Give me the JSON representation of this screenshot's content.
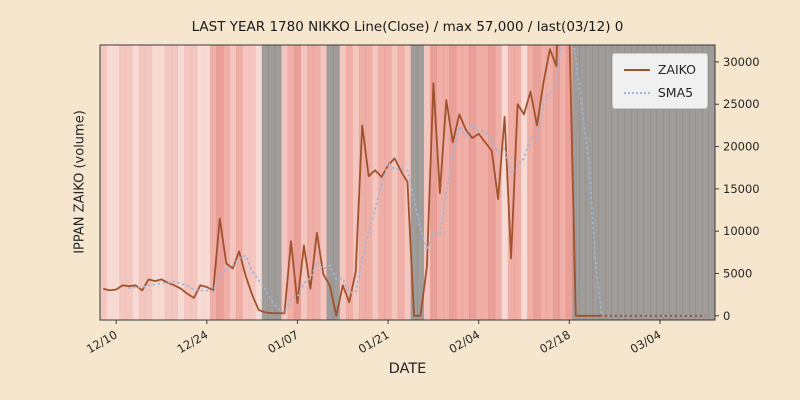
{
  "figure": {
    "background": "#F5E6CD"
  },
  "chart_data": {
    "type": "line",
    "title": "LAST YEAR 1780 NIKKO Line(Close) / max 57,000 / last(03/12) 0",
    "xlabel": "DATE",
    "ylabel": "IPPAN ZAIKO (volume)",
    "ylim": [
      -500,
      32000
    ],
    "yticks": [
      0,
      5000,
      10000,
      15000,
      20000,
      25000,
      30000
    ],
    "xtick_labels": [
      "12/10",
      "12/24",
      "01/07",
      "01/21",
      "02/04",
      "02/18",
      "03/04"
    ],
    "grid": false,
    "plot_bg": "#FAF0EA",
    "legend": {
      "position": "upper right",
      "entries": [
        {
          "name": "ZAIKO",
          "color": "#A0522D",
          "style": "solid"
        },
        {
          "name": "SMA5",
          "color": "#9DB8D9",
          "style": "dotted"
        }
      ]
    },
    "dates": [
      "12/08",
      "12/09",
      "12/10",
      "12/11",
      "12/12",
      "12/13",
      "12/14",
      "12/15",
      "12/16",
      "12/17",
      "12/18",
      "12/19",
      "12/20",
      "12/21",
      "12/22",
      "12/23",
      "12/24",
      "12/25",
      "12/26",
      "12/27",
      "12/28",
      "12/29",
      "12/30",
      "12/31",
      "01/01",
      "01/02",
      "01/03",
      "01/04",
      "01/05",
      "01/06",
      "01/07",
      "01/08",
      "01/09",
      "01/10",
      "01/11",
      "01/12",
      "01/13",
      "01/14",
      "01/15",
      "01/16",
      "01/17",
      "01/18",
      "01/19",
      "01/20",
      "01/21",
      "01/22",
      "01/23",
      "01/24",
      "01/25",
      "01/26",
      "01/27",
      "01/28",
      "01/29",
      "01/30",
      "01/31",
      "02/01",
      "02/02",
      "02/03",
      "02/04",
      "02/05",
      "02/06",
      "02/07",
      "02/08",
      "02/09",
      "02/10",
      "02/11",
      "02/12",
      "02/13",
      "02/14",
      "02/15",
      "02/16",
      "02/17",
      "02/18",
      "02/19",
      "02/20",
      "02/21",
      "02/22",
      "02/23",
      "02/24",
      "02/25",
      "02/26",
      "02/27",
      "02/28",
      "03/01",
      "03/02",
      "03/03",
      "03/04",
      "03/05",
      "03/06",
      "03/07",
      "03/08",
      "03/09",
      "03/10",
      "03/11",
      "03/12"
    ],
    "series": [
      {
        "name": "ZAIKO",
        "values": [
          3200,
          3000,
          3100,
          3600,
          3500,
          3600,
          3000,
          4300,
          4100,
          4300,
          3900,
          3600,
          3200,
          2600,
          2100,
          3600,
          3400,
          3000,
          11500,
          6200,
          5600,
          7600,
          4700,
          2500,
          700,
          400,
          300,
          300,
          300,
          8800,
          1500,
          8300,
          3200,
          9800,
          4900,
          3600,
          0,
          3600,
          1600,
          5200,
          22500,
          16500,
          17200,
          16400,
          17800,
          18600,
          17100,
          15800,
          0,
          0,
          5800,
          27500,
          14500,
          25500,
          20500,
          23800,
          22000,
          21000,
          21500,
          20500,
          19500,
          13800,
          23500,
          6800,
          25000,
          23800,
          26500,
          22500,
          27500,
          31500,
          29500,
          57000,
          34000,
          0,
          0,
          0,
          0,
          0,
          0,
          0,
          0,
          0,
          0,
          0,
          0,
          0,
          0,
          0,
          0,
          0,
          0,
          0,
          0,
          0
        ]
      },
      {
        "name": "SMA5",
        "derived": "5-day simple moving average of ZAIKO (computed from ZAIKO values, plotted from 5th point onward)"
      }
    ],
    "band_palette": {
      "p": "rgba(236,160,150,0.28)",
      "l": "rgba(233,140,130,0.42)",
      "m": "rgba(228,110,100,0.50)",
      "d": "rgba(215,80,70,0.50)",
      "g": "rgba(100,100,100,0.60)"
    },
    "band_colors": [
      "l",
      "p",
      "p",
      "l",
      "l",
      "p",
      "l",
      "l",
      "p",
      "p",
      "l",
      "l",
      "p",
      "l",
      "l",
      "p",
      "p",
      "m",
      "d",
      "m",
      "l",
      "m",
      "l",
      "l",
      "p",
      "g",
      "g",
      "g",
      "l",
      "m",
      "d",
      "l",
      "m",
      "m",
      "l",
      "g",
      "g",
      "l",
      "m",
      "l",
      "m",
      "m",
      "l",
      "m",
      "m",
      "l",
      "m",
      "l",
      "g",
      "g",
      "l",
      "d",
      "m",
      "m",
      "d",
      "m",
      "m",
      "d",
      "m",
      "m",
      "d",
      "m",
      "p",
      "m",
      "m",
      "p",
      "m",
      "d",
      "m",
      "m",
      "d",
      "m",
      "d",
      "g",
      "g",
      "g",
      "g",
      "g",
      "g",
      "g",
      "g",
      "g",
      "g",
      "g",
      "g",
      "g",
      "g",
      "g",
      "g",
      "g",
      "g",
      "g",
      "g",
      "g",
      "g"
    ]
  }
}
